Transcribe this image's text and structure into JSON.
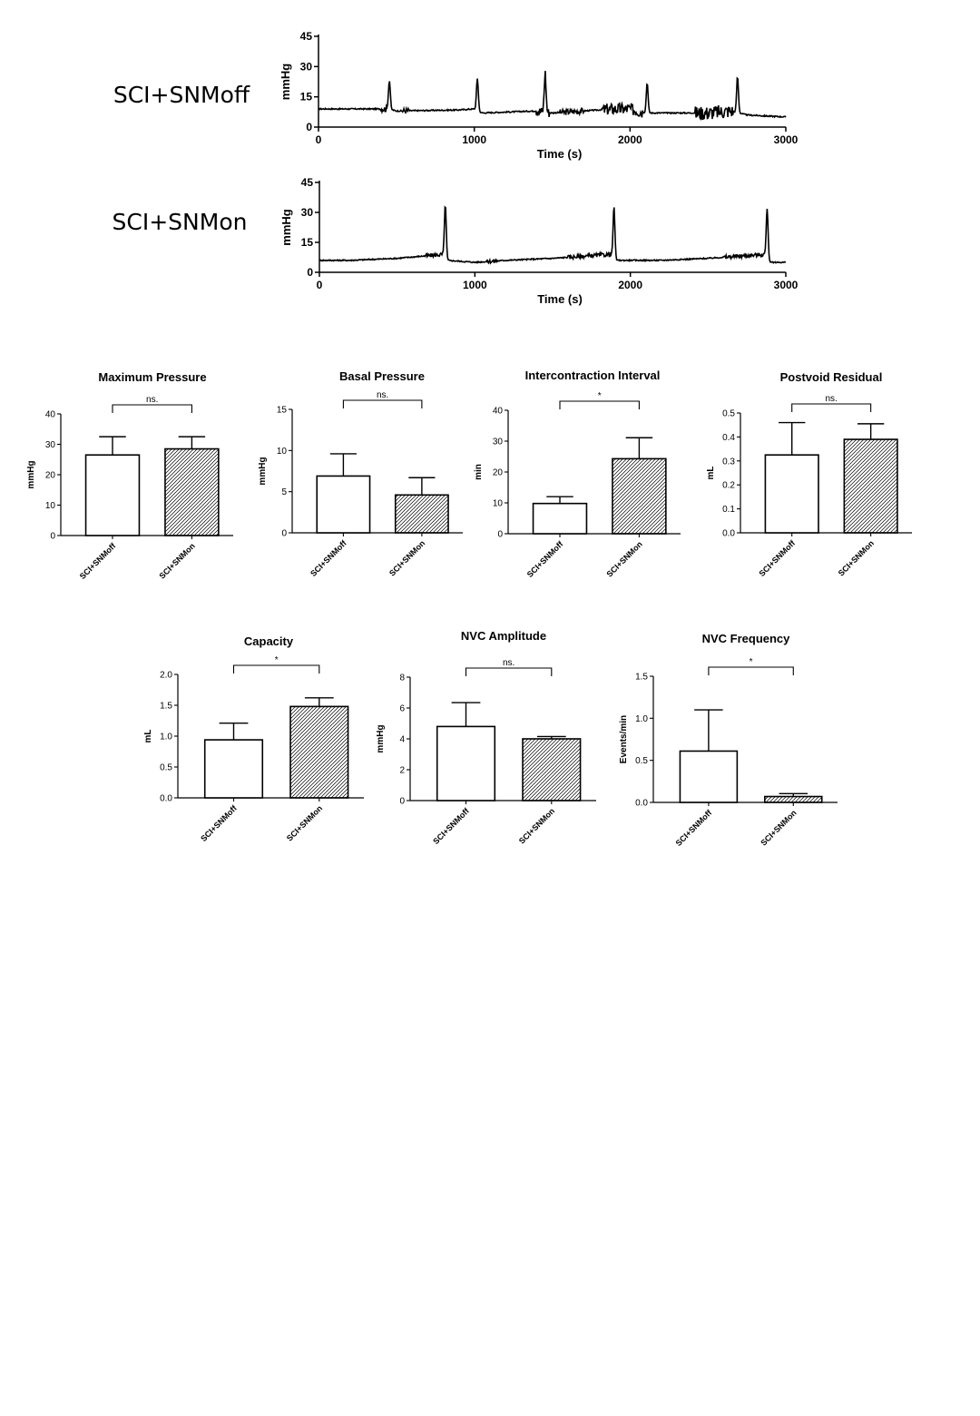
{
  "traces": [
    {
      "label": "SCI+SNMoff",
      "xlabel": "Time (s)",
      "ylabel": "mmHg",
      "xlim": [
        0,
        3000
      ],
      "ylim": [
        0,
        45
      ],
      "xticks": [
        "0",
        "1000",
        "2000",
        "3000"
      ],
      "yticks": [
        "0",
        "15",
        "30",
        "45"
      ],
      "baseline": [
        [
          0,
          9
        ],
        [
          400,
          9
        ],
        [
          450,
          9
        ],
        [
          500,
          8
        ],
        [
          900,
          8.5
        ],
        [
          1000,
          9
        ],
        [
          1050,
          7
        ],
        [
          1400,
          8
        ],
        [
          1500,
          7
        ],
        [
          1900,
          9
        ],
        [
          2000,
          9
        ],
        [
          2100,
          7
        ],
        [
          2500,
          7
        ],
        [
          2650,
          8
        ],
        [
          2750,
          6
        ],
        [
          3000,
          5
        ]
      ],
      "spikes": [
        [
          455,
          23
        ],
        [
          1020,
          24
        ],
        [
          1455,
          27
        ],
        [
          2110,
          22
        ],
        [
          2690,
          25
        ]
      ],
      "noise": [
        [
          400,
          440,
          3
        ],
        [
          540,
          580,
          3
        ],
        [
          1400,
          1480,
          5
        ],
        [
          1550,
          1700,
          3
        ],
        [
          1820,
          2080,
          6
        ],
        [
          2420,
          2660,
          7
        ]
      ]
    },
    {
      "label": "SCI+SNMon",
      "xlabel": "Time (s)",
      "ylabel": "mmHg",
      "xlim": [
        0,
        3000
      ],
      "ylim": [
        0,
        45
      ],
      "xticks": [
        "0",
        "1000",
        "2000",
        "3000"
      ],
      "yticks": [
        "0",
        "15",
        "30",
        "45"
      ],
      "baseline": [
        [
          0,
          6
        ],
        [
          200,
          6
        ],
        [
          500,
          7
        ],
        [
          800,
          9
        ],
        [
          820,
          6
        ],
        [
          1000,
          5
        ],
        [
          1200,
          6
        ],
        [
          1500,
          7
        ],
        [
          1880,
          9
        ],
        [
          1900,
          6
        ],
        [
          2200,
          6
        ],
        [
          2500,
          7
        ],
        [
          2870,
          9
        ],
        [
          2900,
          5
        ],
        [
          3000,
          5
        ]
      ],
      "spikes": [
        [
          810,
          34
        ],
        [
          1895,
          33
        ],
        [
          2880,
          32
        ]
      ],
      "noise": [
        [
          680,
          800,
          2
        ],
        [
          1080,
          1150,
          2
        ],
        [
          1600,
          1880,
          2
        ],
        [
          2600,
          2870,
          2
        ]
      ]
    }
  ],
  "chart_data": [
    {
      "type": "bar",
      "title": "Maximum Pressure",
      "ylabel": "mmHg",
      "categories": [
        "SCI+SNMoff",
        "SCI+SNMon"
      ],
      "values": [
        26.5,
        28.5
      ],
      "errors": [
        6,
        4
      ],
      "ylim": [
        0,
        40
      ],
      "yticks": [
        "0",
        "10",
        "20",
        "30",
        "40"
      ],
      "significance": "ns."
    },
    {
      "type": "bar",
      "title": "Basal Pressure",
      "ylabel": "mmHg",
      "categories": [
        "SCI+SNMoff",
        "SCI+SNMon"
      ],
      "values": [
        6.9,
        4.6
      ],
      "errors": [
        2.7,
        2.1
      ],
      "ylim": [
        0,
        15
      ],
      "yticks": [
        "0",
        "5",
        "10",
        "15"
      ],
      "significance": "ns."
    },
    {
      "type": "bar",
      "title": "Intercontraction Interval",
      "ylabel": "min",
      "categories": [
        "SCI+SNMoff",
        "SCI+SNMon"
      ],
      "values": [
        9.8,
        24.3
      ],
      "errors": [
        2.2,
        6.8
      ],
      "ylim": [
        0,
        40
      ],
      "yticks": [
        "0",
        "10",
        "20",
        "30",
        "40"
      ],
      "significance": "*"
    },
    {
      "type": "bar",
      "title": "Postvoid Residual",
      "ylabel": "mL",
      "categories": [
        "SCI+SNMoff",
        "SCI+SNMon"
      ],
      "values": [
        0.325,
        0.39
      ],
      "errors": [
        0.135,
        0.065
      ],
      "ylim": [
        0,
        0.5
      ],
      "yticks": [
        "0.0",
        "0.1",
        "0.2",
        "0.3",
        "0.4",
        "0.5"
      ],
      "significance": "ns."
    },
    {
      "type": "bar",
      "title": "Capacity",
      "ylabel": "mL",
      "categories": [
        "SCI+SNMoff",
        "SCI+SNMon"
      ],
      "values": [
        0.94,
        1.48
      ],
      "errors": [
        0.27,
        0.14
      ],
      "ylim": [
        0,
        2.0
      ],
      "yticks": [
        "0.0",
        "0.5",
        "1.0",
        "1.5",
        "2.0"
      ],
      "significance": "*"
    },
    {
      "type": "bar",
      "title": "NVC Amplitude",
      "ylabel": "mmHg",
      "categories": [
        "SCI+SNMoff",
        "SCI+SNMon"
      ],
      "values": [
        4.8,
        4.0
      ],
      "errors": [
        1.55,
        0.15
      ],
      "ylim": [
        0,
        8
      ],
      "yticks": [
        "0",
        "2",
        "4",
        "6",
        "8"
      ],
      "significance": "ns."
    },
    {
      "type": "bar",
      "title": "NVC Frequency",
      "ylabel": "Events/min",
      "categories": [
        "SCI+SNMoff",
        "SCI+SNMon"
      ],
      "values": [
        0.61,
        0.07
      ],
      "errors": [
        0.49,
        0.035
      ],
      "ylim": [
        0,
        1.5
      ],
      "yticks": [
        "0.0",
        "0.5",
        "1.0",
        "1.5"
      ],
      "significance": "*"
    }
  ]
}
